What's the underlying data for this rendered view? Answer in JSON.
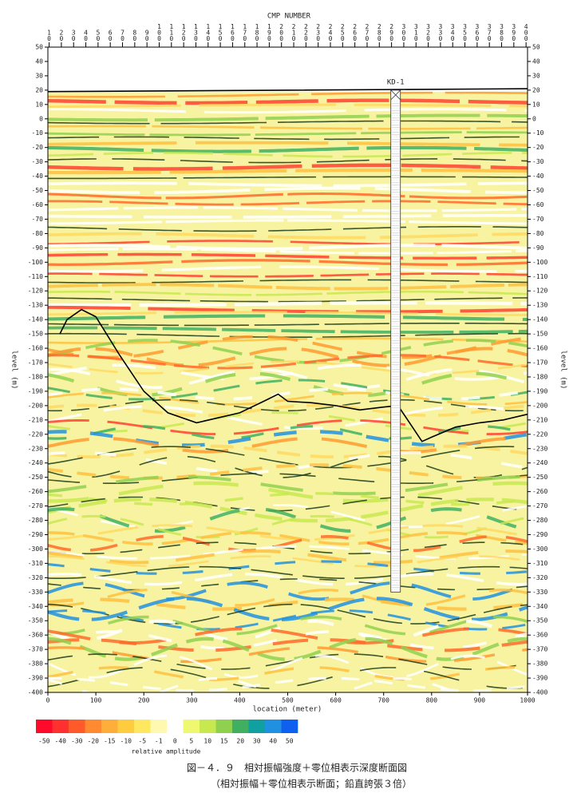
{
  "chart_data": {
    "type": "line",
    "top_axis_label": "CMP NUMBER",
    "xlabel": "location (meter)",
    "ylabel": "level (m)",
    "xlim": [
      0,
      1000
    ],
    "xticks": [
      0,
      100,
      200,
      300,
      400,
      500,
      600,
      700,
      800,
      900,
      1000
    ],
    "top_xlim": [
      8.97,
      401.2
    ],
    "top_xticks": [
      10,
      20,
      30,
      40,
      50,
      60,
      70,
      80,
      90,
      100,
      110,
      120,
      130,
      140,
      150,
      160,
      170,
      180,
      190,
      200,
      210,
      220,
      230,
      240,
      250,
      260,
      270,
      280,
      290,
      300,
      310,
      320,
      330,
      340,
      350,
      360,
      370,
      380,
      390,
      400
    ],
    "ylim": [
      -400,
      50
    ],
    "yticks": [
      50,
      40,
      30,
      20,
      10,
      0,
      -10,
      -20,
      -30,
      -40,
      -50,
      -60,
      -70,
      -80,
      -90,
      -100,
      -110,
      -120,
      -130,
      -140,
      -150,
      -160,
      -170,
      -180,
      -190,
      -200,
      -210,
      -220,
      -230,
      -240,
      -250,
      -260,
      -270,
      -280,
      -290,
      -300,
      -310,
      -320,
      -330,
      -340,
      -350,
      -360,
      -370,
      -380,
      -390,
      -400
    ],
    "series": [
      {
        "color": "#000000",
        "x": [
          0,
          500,
          1000
        ],
        "values": [
          19,
          20,
          21
        ]
      },
      {
        "color": "#000000",
        "x": [
          25,
          40,
          70,
          100,
          150,
          200,
          250,
          310,
          400,
          450,
          480,
          500,
          550,
          600,
          650,
          700,
          730,
          760,
          780,
          800,
          850,
          900,
          950,
          1000
        ],
        "values": [
          -150,
          -140,
          -133,
          -138,
          -165,
          -190,
          -205,
          -212,
          -205,
          -197,
          -192,
          -197,
          -198,
          -200,
          -203,
          -201,
          -200,
          -215,
          -225,
          -222,
          -215,
          -212,
          -210,
          -206
        ]
      }
    ],
    "borehole": {
      "label": "KD-1",
      "location": 725,
      "top": 20,
      "bottom": -330
    },
    "colorbar": {
      "label": "relative amplitude",
      "ticks": [
        -50,
        -40,
        -30,
        -20,
        -15,
        -10,
        -5,
        -1,
        0,
        5,
        10,
        15,
        20,
        30,
        40,
        50
      ],
      "colors": [
        "#ff0a2a",
        "#ff3030",
        "#ff5a2a",
        "#ff8a30",
        "#ffae3a",
        "#ffcc40",
        "#ffe860",
        "#fff8b0",
        "#ffffff",
        "#f0f870",
        "#c8e850",
        "#90d050",
        "#40b060",
        "#10a0a0",
        "#2090e0",
        "#1060f0"
      ]
    },
    "caption": [
      "図－４．９　相対振幅強度＋零位相表示深度断面図",
      "（相対振幅＋零位相表示断面；鉛直誇張３倍）"
    ]
  }
}
